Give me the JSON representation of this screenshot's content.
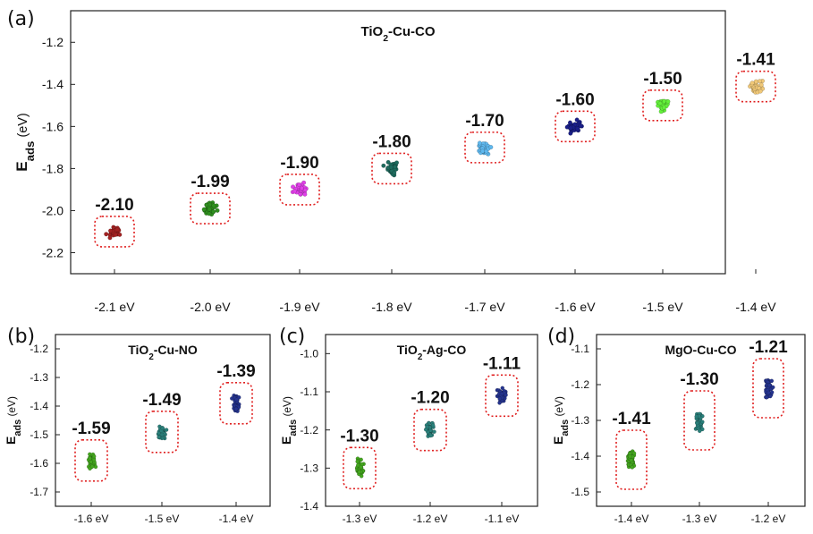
{
  "chart_data": [
    {
      "panel_label": "(a)",
      "type": "scatter",
      "title_parts": [
        "TiO",
        "2",
        "-Cu-CO"
      ],
      "ylabel_parts": [
        "E",
        "ads",
        " (eV)"
      ],
      "categories": [
        "-2.1 eV",
        "-2.0 eV",
        "-1.9 eV",
        "-1.8 eV",
        "-1.7 eV",
        "-1.6 eV",
        "-1.5 eV",
        "-1.4 eV"
      ],
      "values": [
        -2.1,
        -1.99,
        -1.9,
        -1.8,
        -1.7,
        -1.6,
        -1.5,
        -1.41
      ],
      "value_labels": [
        "-2.10",
        "-1.99",
        "-1.90",
        "-1.80",
        "-1.70",
        "-1.60",
        "-1.50",
        "-1.41"
      ],
      "colors": [
        "#a32222",
        "#2f8f1f",
        "#e040e8",
        "#1f6b5e",
        "#5fb8ee",
        "#1a1f88",
        "#63f03a",
        "#f0c878"
      ],
      "ylim": [
        -2.3,
        -1.05
      ],
      "yticks": [
        -2.2,
        -2.0,
        -1.8,
        -1.6,
        -1.4,
        -1.2
      ],
      "ytick_labels": [
        "-2.2",
        "-2.0",
        "-1.8",
        "-1.6",
        "-1.4",
        "-1.2"
      ]
    },
    {
      "panel_label": "(b)",
      "type": "scatter",
      "title_parts": [
        "TiO",
        "2",
        "-Cu-NO"
      ],
      "ylabel_parts": [
        "E",
        "ads",
        " (eV)"
      ],
      "categories": [
        "-1.6 eV",
        "-1.5 eV",
        "-1.4 eV"
      ],
      "values": [
        -1.59,
        -1.49,
        -1.39
      ],
      "value_labels": [
        "-1.59",
        "-1.49",
        "-1.39"
      ],
      "colors": [
        "#44a61f",
        "#2a7f7a",
        "#25348f"
      ],
      "ylim": [
        -1.75,
        -1.15
      ],
      "yticks": [
        -1.7,
        -1.6,
        -1.5,
        -1.4,
        -1.3,
        -1.2
      ],
      "ytick_labels": [
        "-1.7",
        "-1.6",
        "-1.5",
        "-1.4",
        "-1.3",
        "-1.2"
      ]
    },
    {
      "panel_label": "(c)",
      "type": "scatter",
      "title_parts": [
        "TiO",
        "2",
        "-Ag-CO"
      ],
      "ylabel_parts": [
        "E",
        "ads",
        " (eV)"
      ],
      "categories": [
        "-1.3 eV",
        "-1.2 eV",
        "-1.1 eV"
      ],
      "values": [
        -1.3,
        -1.2,
        -1.11
      ],
      "value_labels": [
        "-1.30",
        "-1.20",
        "-1.11"
      ],
      "colors": [
        "#44a61f",
        "#2a7f7a",
        "#25348f"
      ],
      "ylim": [
        -1.4,
        -0.95
      ],
      "yticks": [
        -1.4,
        -1.3,
        -1.2,
        -1.1,
        -1.0
      ],
      "ytick_labels": [
        "-1.4",
        "-1.3",
        "-1.2",
        "-1.1",
        "-1.0"
      ]
    },
    {
      "panel_label": "(d)",
      "type": "scatter",
      "title_parts": [
        "MgO-Cu-CO",
        "",
        ""
      ],
      "ylabel_parts": [
        "E",
        "ads",
        " (eV)"
      ],
      "categories": [
        "-1.4 eV",
        "-1.3 eV",
        "-1.2 eV"
      ],
      "values": [
        -1.41,
        -1.3,
        -1.21
      ],
      "value_labels": [
        "-1.41",
        "-1.30",
        "-1.21"
      ],
      "colors": [
        "#44a61f",
        "#2a7f7a",
        "#25348f"
      ],
      "ylim": [
        -1.54,
        -1.06
      ],
      "yticks": [
        -1.5,
        -1.4,
        -1.3,
        -1.2,
        -1.1
      ],
      "ytick_labels": [
        "-1.5",
        "-1.4",
        "-1.3",
        "-1.2",
        "-1.1"
      ]
    }
  ]
}
